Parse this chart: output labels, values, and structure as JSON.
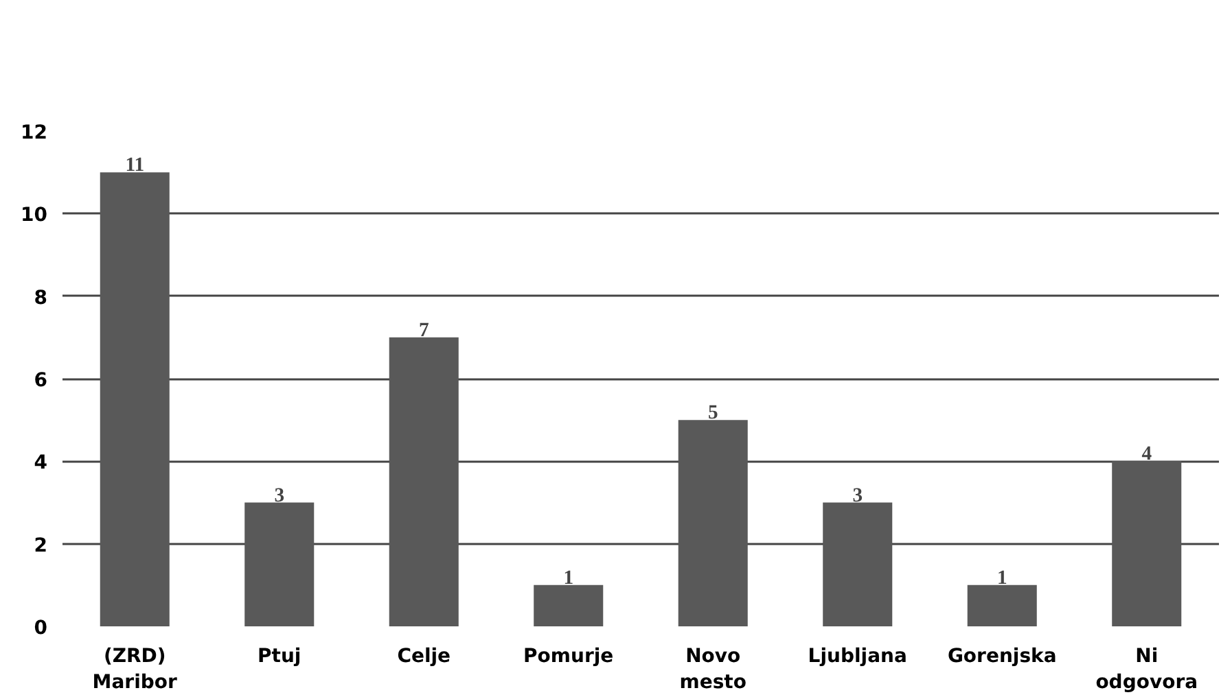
{
  "chart_data": {
    "type": "bar",
    "categories": [
      "(ZRD)\nMaribor",
      "Ptuj",
      "Celje",
      "Pomurje",
      "Novo\nmesto",
      "Ljubljana",
      "Gorenjska",
      "Ni\nodgovora"
    ],
    "values": [
      11,
      3,
      7,
      1,
      5,
      3,
      1,
      4
    ],
    "color": "#595959",
    "ylim": [
      0,
      12
    ],
    "yticks": [
      0,
      2,
      4,
      6,
      8,
      10,
      12
    ],
    "grid": "y",
    "data_labels": true
  }
}
